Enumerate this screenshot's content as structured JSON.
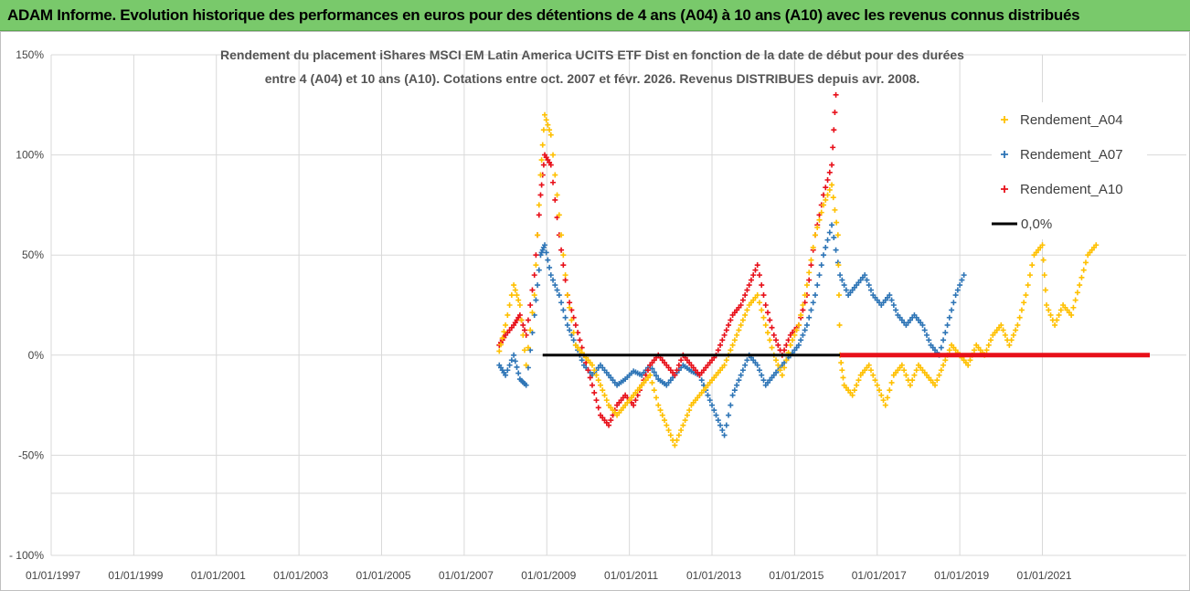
{
  "header": {
    "title": "ADAM Informe. Evolution historique des performances en euros pour des détentions de 4 ans (A04) à 10 ans (A10) avec les revenus connus distribués"
  },
  "colors": {
    "banner_bg": "#79c96b",
    "a04": "#ffc000",
    "a07": "#2e75b6",
    "a10": "#e8101a",
    "zero": "#000000",
    "zero_tail": "#e8101a"
  },
  "chart_data": {
    "type": "scatter",
    "title_line1": "Rendement du placement iShares MSCI EM Latin America UCITS ETF Dist en fonction de la date de début pour des durées",
    "title_line2": "entre 4 (A04) et 10 ans (A10). Cotations entre oct. 2007 et févr. 2026. Revenus DISTRIBUES depuis avr. 2008.",
    "y_ticks": [
      "150%",
      "100%",
      "50%",
      "0%",
      "-50%",
      "- 100%"
    ],
    "y_tick_values": [
      150,
      100,
      50,
      0,
      -50,
      -100
    ],
    "ylim": [
      -100,
      150
    ],
    "x_ticks": [
      "01/01/1997",
      "01/01/1999",
      "01/01/2001",
      "01/01/2003",
      "01/01/2005",
      "01/01/2007",
      "01/01/2009",
      "01/01/2011",
      "01/01/2013",
      "01/01/2015",
      "01/01/2017",
      "01/01/2019",
      "01/01/2021"
    ],
    "x_tick_years": [
      1997,
      1999,
      2001,
      2003,
      2005,
      2007,
      2009,
      2011,
      2013,
      2015,
      2017,
      2019,
      2021
    ],
    "xlim": [
      1997,
      2023.6
    ],
    "legend_position": "right",
    "grid": true,
    "series": [
      {
        "name": "Rendement_A04",
        "color": "#ffc000",
        "points": [
          [
            2007.85,
            2
          ],
          [
            2008.0,
            15
          ],
          [
            2008.2,
            35
          ],
          [
            2008.35,
            25
          ],
          [
            2008.5,
            -5
          ],
          [
            2008.7,
            30
          ],
          [
            2008.85,
            90
          ],
          [
            2008.95,
            120
          ],
          [
            2009.1,
            110
          ],
          [
            2009.3,
            70
          ],
          [
            2009.5,
            30
          ],
          [
            2009.7,
            5
          ],
          [
            2009.9,
            0
          ],
          [
            2010.1,
            -5
          ],
          [
            2010.3,
            -15
          ],
          [
            2010.5,
            -25
          ],
          [
            2010.7,
            -30
          ],
          [
            2010.9,
            -25
          ],
          [
            2011.1,
            -20
          ],
          [
            2011.3,
            -15
          ],
          [
            2011.5,
            -10
          ],
          [
            2011.7,
            -25
          ],
          [
            2011.9,
            -35
          ],
          [
            2012.1,
            -45
          ],
          [
            2012.3,
            -35
          ],
          [
            2012.5,
            -25
          ],
          [
            2012.7,
            -20
          ],
          [
            2012.9,
            -15
          ],
          [
            2013.1,
            -10
          ],
          [
            2013.3,
            -5
          ],
          [
            2013.5,
            5
          ],
          [
            2013.7,
            15
          ],
          [
            2013.9,
            25
          ],
          [
            2014.1,
            30
          ],
          [
            2014.3,
            15
          ],
          [
            2014.5,
            0
          ],
          [
            2014.7,
            -10
          ],
          [
            2014.9,
            5
          ],
          [
            2015.1,
            15
          ],
          [
            2015.3,
            35
          ],
          [
            2015.5,
            60
          ],
          [
            2015.7,
            75
          ],
          [
            2015.9,
            85
          ],
          [
            2016.05,
            60
          ],
          [
            2016.1,
            0
          ],
          [
            2016.2,
            -15
          ],
          [
            2016.4,
            -20
          ],
          [
            2016.6,
            -10
          ],
          [
            2016.8,
            -5
          ],
          [
            2017.0,
            -15
          ],
          [
            2017.2,
            -25
          ],
          [
            2017.4,
            -10
          ],
          [
            2017.6,
            -5
          ],
          [
            2017.8,
            -15
          ],
          [
            2018.0,
            -5
          ],
          [
            2018.2,
            -10
          ],
          [
            2018.4,
            -15
          ],
          [
            2018.6,
            -5
          ],
          [
            2018.8,
            5
          ],
          [
            2019.0,
            0
          ],
          [
            2019.2,
            -5
          ],
          [
            2019.4,
            5
          ],
          [
            2019.6,
            0
          ],
          [
            2019.8,
            10
          ],
          [
            2020.0,
            15
          ],
          [
            2020.2,
            5
          ],
          [
            2020.4,
            15
          ],
          [
            2020.6,
            30
          ],
          [
            2020.8,
            50
          ],
          [
            2021.0,
            55
          ],
          [
            2021.1,
            25
          ],
          [
            2021.3,
            15
          ],
          [
            2021.5,
            25
          ],
          [
            2021.7,
            20
          ],
          [
            2021.9,
            35
          ],
          [
            2022.1,
            50
          ],
          [
            2022.3,
            55
          ]
        ]
      },
      {
        "name": "Rendement_A07",
        "color": "#2e75b6",
        "points": [
          [
            2007.85,
            -5
          ],
          [
            2008.0,
            -10
          ],
          [
            2008.2,
            0
          ],
          [
            2008.35,
            -12
          ],
          [
            2008.5,
            -15
          ],
          [
            2008.7,
            20
          ],
          [
            2008.85,
            50
          ],
          [
            2008.95,
            55
          ],
          [
            2009.1,
            40
          ],
          [
            2009.3,
            30
          ],
          [
            2009.5,
            15
          ],
          [
            2009.7,
            5
          ],
          [
            2009.9,
            -5
          ],
          [
            2010.1,
            -10
          ],
          [
            2010.3,
            -5
          ],
          [
            2010.5,
            -10
          ],
          [
            2010.7,
            -15
          ],
          [
            2010.9,
            -12
          ],
          [
            2011.1,
            -8
          ],
          [
            2011.3,
            -10
          ],
          [
            2011.5,
            -5
          ],
          [
            2011.7,
            -12
          ],
          [
            2011.9,
            -15
          ],
          [
            2012.1,
            -10
          ],
          [
            2012.3,
            -5
          ],
          [
            2012.5,
            -8
          ],
          [
            2012.7,
            -10
          ],
          [
            2012.9,
            -20
          ],
          [
            2013.1,
            -30
          ],
          [
            2013.3,
            -40
          ],
          [
            2013.5,
            -20
          ],
          [
            2013.7,
            -10
          ],
          [
            2013.9,
            0
          ],
          [
            2014.1,
            -5
          ],
          [
            2014.3,
            -15
          ],
          [
            2014.5,
            -10
          ],
          [
            2014.7,
            -5
          ],
          [
            2014.9,
            0
          ],
          [
            2015.1,
            5
          ],
          [
            2015.3,
            15
          ],
          [
            2015.5,
            30
          ],
          [
            2015.7,
            50
          ],
          [
            2015.9,
            65
          ],
          [
            2016.1,
            40
          ],
          [
            2016.3,
            30
          ],
          [
            2016.5,
            35
          ],
          [
            2016.7,
            40
          ],
          [
            2016.9,
            30
          ],
          [
            2017.1,
            25
          ],
          [
            2017.3,
            30
          ],
          [
            2017.5,
            20
          ],
          [
            2017.7,
            15
          ],
          [
            2017.9,
            20
          ],
          [
            2018.1,
            15
          ],
          [
            2018.3,
            5
          ],
          [
            2018.5,
            0
          ],
          [
            2018.7,
            15
          ],
          [
            2018.9,
            30
          ],
          [
            2019.1,
            40
          ]
        ]
      },
      {
        "name": "Rendement_A10",
        "color": "#e8101a",
        "points": [
          [
            2007.85,
            5
          ],
          [
            2008.0,
            10
          ],
          [
            2008.2,
            15
          ],
          [
            2008.35,
            20
          ],
          [
            2008.5,
            10
          ],
          [
            2008.7,
            40
          ],
          [
            2008.85,
            80
          ],
          [
            2008.95,
            100
          ],
          [
            2009.1,
            95
          ],
          [
            2009.3,
            60
          ],
          [
            2009.5,
            30
          ],
          [
            2009.7,
            15
          ],
          [
            2009.9,
            0
          ],
          [
            2010.1,
            -15
          ],
          [
            2010.3,
            -30
          ],
          [
            2010.5,
            -35
          ],
          [
            2010.7,
            -25
          ],
          [
            2010.9,
            -20
          ],
          [
            2011.1,
            -25
          ],
          [
            2011.3,
            -15
          ],
          [
            2011.5,
            -5
          ],
          [
            2011.7,
            0
          ],
          [
            2011.9,
            -5
          ],
          [
            2012.1,
            -10
          ],
          [
            2012.3,
            0
          ],
          [
            2012.5,
            -5
          ],
          [
            2012.7,
            -10
          ],
          [
            2012.9,
            -5
          ],
          [
            2013.1,
            0
          ],
          [
            2013.3,
            10
          ],
          [
            2013.5,
            20
          ],
          [
            2013.7,
            25
          ],
          [
            2013.9,
            35
          ],
          [
            2014.1,
            45
          ],
          [
            2014.3,
            25
          ],
          [
            2014.5,
            10
          ],
          [
            2014.7,
            0
          ],
          [
            2014.9,
            10
          ],
          [
            2015.1,
            15
          ],
          [
            2015.3,
            30
          ],
          [
            2015.5,
            60
          ],
          [
            2015.7,
            80
          ],
          [
            2015.9,
            95
          ],
          [
            2016.0,
            130
          ]
        ]
      }
    ],
    "zero_line": {
      "label": "0,0%",
      "black_from": 2008.9,
      "black_to": 2016.1,
      "red_from": 2016.1,
      "red_to": 2023.6
    }
  }
}
